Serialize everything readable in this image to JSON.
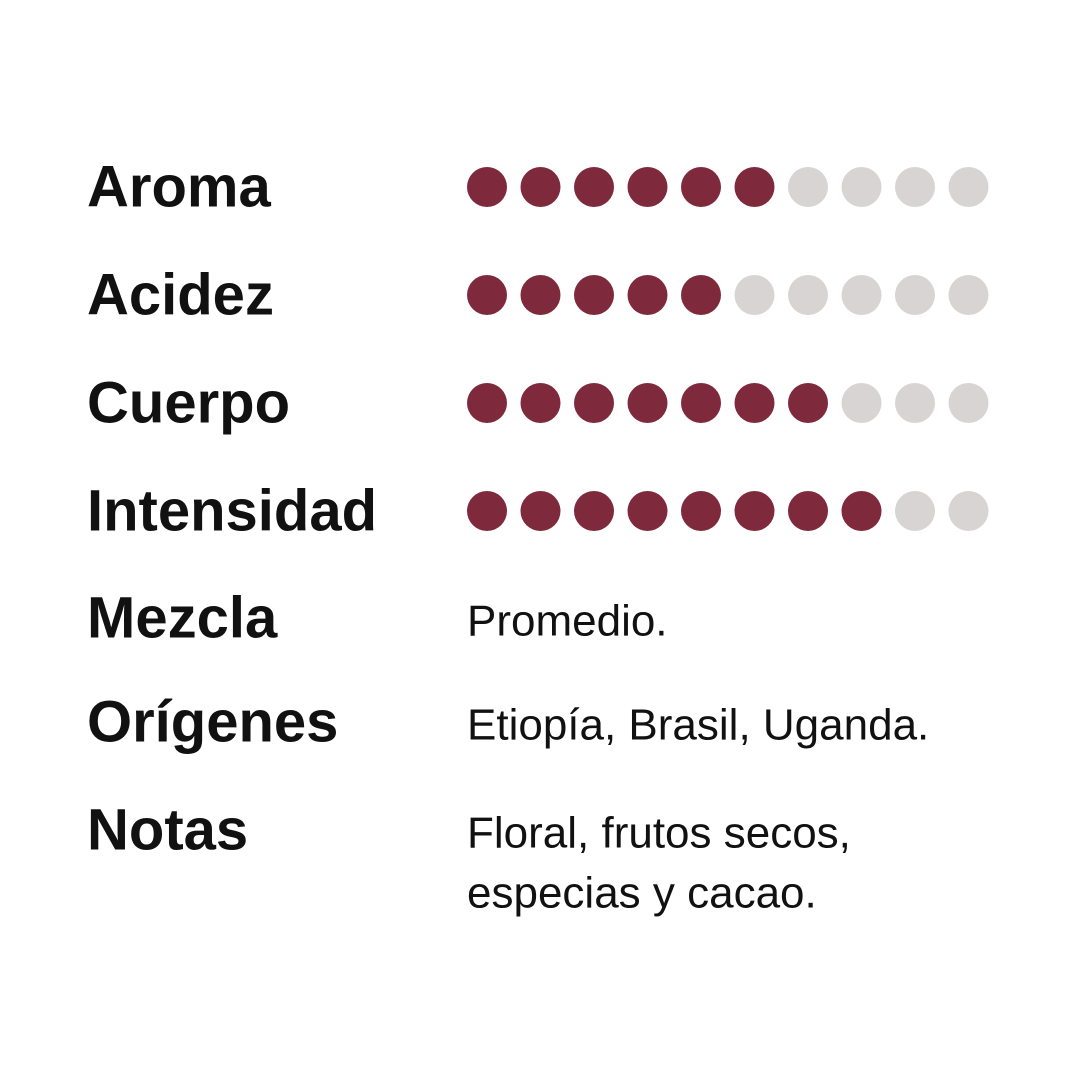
{
  "scale": 10,
  "ratings": [
    {
      "label": "Aroma",
      "value": 6
    },
    {
      "label": "Acidez",
      "value": 5
    },
    {
      "label": "Cuerpo",
      "value": 7
    },
    {
      "label": "Intensidad",
      "value": 8
    }
  ],
  "details": [
    {
      "label": "Mezcla",
      "lines": [
        "Promedio."
      ]
    },
    {
      "label": "Orígenes",
      "lines": [
        "Etiopía, Brasil, Uganda."
      ]
    },
    {
      "label": "Notas",
      "lines": [
        "Floral, frutos secos,",
        "especias y cacao."
      ]
    }
  ],
  "colors": {
    "filled": "#7f2a3c",
    "empty": "#d8d4d4"
  }
}
